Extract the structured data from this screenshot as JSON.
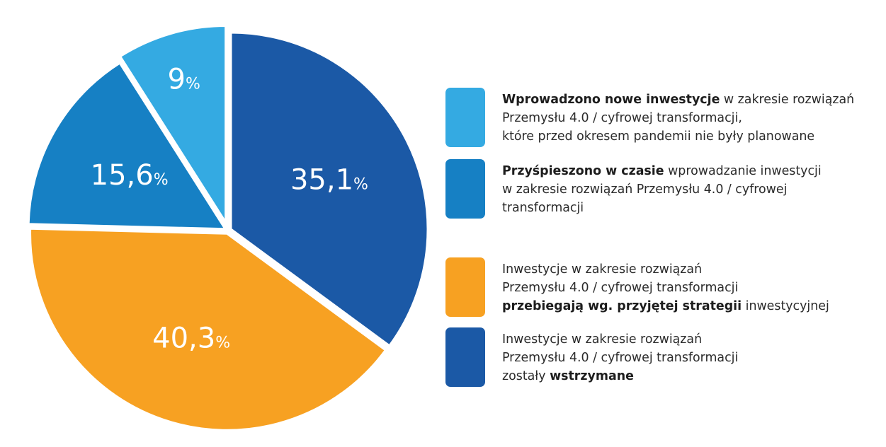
{
  "chart_data": {
    "type": "pie",
    "title": "",
    "slices": [
      {
        "value": 35.1,
        "value_label": "35,1",
        "unit": "%",
        "color": "#1b59a6",
        "explode": false,
        "legend": {
          "line1_bold": "",
          "line1": "Inwestycje w zakresie rozwiązań",
          "line2_bold": "",
          "line2": "Przemysłu 4.0 / cyfrowej transformacji",
          "line3_pre": "zostały ",
          "line3_bold": "wstrzymane",
          "line3": ""
        }
      },
      {
        "value": 40.3,
        "value_label": "40,3",
        "unit": "%",
        "color": "#f7a122",
        "explode": false,
        "legend": {
          "line1_bold": "",
          "line1": "Inwestycje w zakresie rozwiązań",
          "line2_bold": "",
          "line2": "Przemysłu 4.0 / cyfrowej transformacji",
          "line3_pre": "",
          "line3_bold": "przebiegają wg. przyjętej strategii",
          "line3": " inwestycyjnej"
        }
      },
      {
        "value": 15.6,
        "value_label": "15,6",
        "unit": "%",
        "color": "#1680c4",
        "explode": false,
        "legend": {
          "line1_bold": "Przyśpieszono w czasie",
          "line1": " wprowadzanie inwestycji",
          "line2_bold": "",
          "line2": "w zakresie rozwiązań Przemysłu 4.0 / cyfrowej",
          "line3_pre": "transformacji",
          "line3_bold": "",
          "line3": ""
        }
      },
      {
        "value": 9,
        "value_label": "9",
        "unit": "%",
        "color": "#34aae2",
        "explode": true,
        "legend": {
          "line1_bold": "Wprowadzono nowe inwestycje",
          "line1": " w zakresie rozwiązań",
          "line2_bold": "",
          "line2": "Przemysłu 4.0 / cyfrowej transformacji,",
          "line3_pre": "które przed okresem pandemii nie były planowane",
          "line3_bold": "",
          "line3": ""
        }
      }
    ],
    "legend_order": [
      3,
      2,
      1,
      0
    ],
    "legend_placement": "right"
  }
}
